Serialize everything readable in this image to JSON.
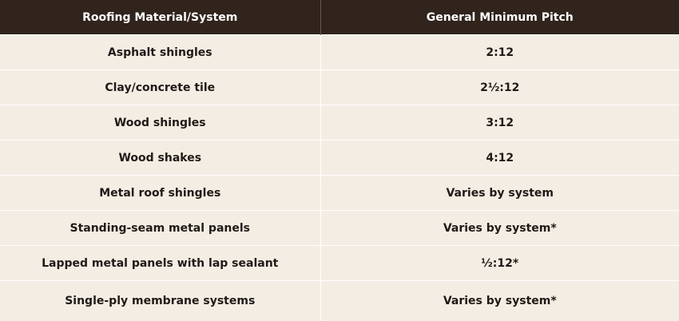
{
  "table": {
    "headers": [
      "Roofing Material/System",
      "General Minimum Pitch"
    ],
    "rows": [
      [
        "Asphalt shingles",
        "2:12"
      ],
      [
        "Clay/concrete tile",
        "2½:12"
      ],
      [
        "Wood shingles",
        "3:12"
      ],
      [
        "Wood shakes",
        "4:12"
      ],
      [
        "Metal roof shingles",
        "Varies by system"
      ],
      [
        "Standing-seam metal panels",
        "Varies by system*"
      ],
      [
        "Lapped metal panels with lap sealant",
        "½:12*"
      ],
      [
        "Single-ply membrane systems",
        "Varies by system*"
      ]
    ]
  }
}
